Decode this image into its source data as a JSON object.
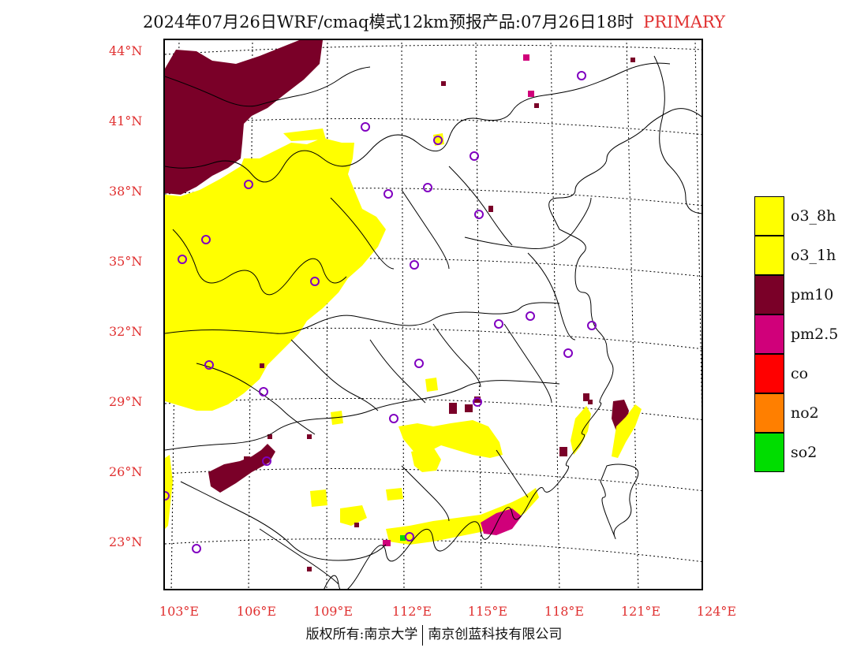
{
  "header": {
    "title": "2024年07月26日WRF/cmaq模式12km预报产品:07月26日18时",
    "tag": "PRIMARY"
  },
  "axes": {
    "lat_labels": [
      "44°N",
      "41°N",
      "38°N",
      "35°N",
      "32°N",
      "29°N",
      "26°N",
      "23°N"
    ],
    "lon_labels": [
      "103°E",
      "106°E",
      "109°E",
      "112°E",
      "115°E",
      "118°E",
      "121°E",
      "124°E"
    ]
  },
  "legend": {
    "items": [
      {
        "label": "o3_8h",
        "color": "#ffff00"
      },
      {
        "label": "o3_1h",
        "color": "#ffff00"
      },
      {
        "label": "pm10",
        "color": "#7a0028"
      },
      {
        "label": "pm2.5",
        "color": "#d0007a"
      },
      {
        "label": "co",
        "color": "#ff0000"
      },
      {
        "label": "no2",
        "color": "#ff7f00"
      },
      {
        "label": "so2",
        "color": "#00dd00"
      }
    ]
  },
  "footer": {
    "left": "版权所有:南京大学",
    "right": "南京创蓝科技有限公司"
  }
}
